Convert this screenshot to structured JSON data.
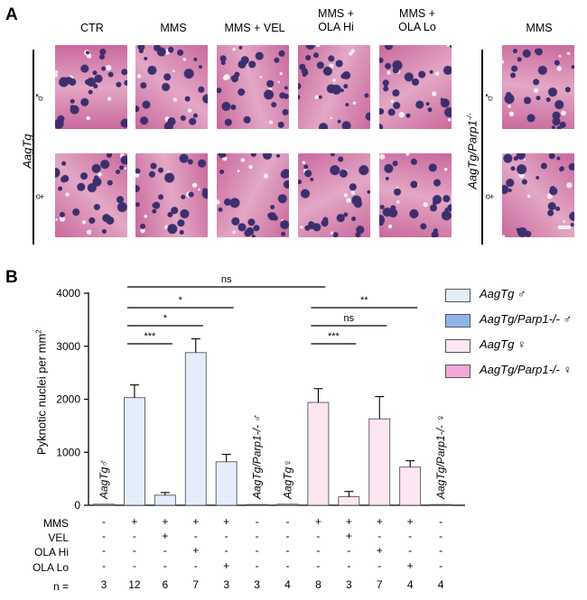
{
  "panel_a": {
    "letter": "A",
    "columns": [
      "CTR",
      "MMS",
      "MMS + VEL",
      "MMS +\nOLA Hi",
      "MMS +\nOLA Lo"
    ],
    "right_column": "MMS",
    "left_group_label": "AagTg",
    "right_group_label": "AagTg/Parp1",
    "right_group_sup": "-/-",
    "male": "♂",
    "female": "♀",
    "tile_colors": {
      "base": "#c9699c",
      "light": "#e3a7c6",
      "dark": "#3d2e6e"
    }
  },
  "panel_b": {
    "letter": "B",
    "ylabel": "Pyknotic nuclei per mm",
    "ylabel_sup": "2",
    "legend": [
      {
        "label": "AagTg ♂",
        "color": "#e4eefb"
      },
      {
        "label": "AagTg/Parp1-/- ♂",
        "color": "#8fb4ea"
      },
      {
        "label": "AagTg ♀",
        "color": "#fbe6f2"
      },
      {
        "label": "AagTg/Parp1-/- ♀",
        "color": "#f3a8d6"
      }
    ],
    "row_labels": [
      "MMS",
      "VEL",
      "OLA Hi",
      "OLA Lo",
      "n ="
    ],
    "table": [
      [
        "-",
        "+",
        "+",
        "+",
        "+",
        "-",
        "-",
        "+",
        "+",
        "+",
        "+",
        "-"
      ],
      [
        "-",
        "-",
        "+",
        "-",
        "-",
        "-",
        "-",
        "-",
        "+",
        "-",
        "-",
        "-"
      ],
      [
        "-",
        "-",
        "-",
        "+",
        "-",
        "-",
        "-",
        "-",
        "-",
        "+",
        "-",
        "-"
      ],
      [
        "-",
        "-",
        "-",
        "-",
        "+",
        "-",
        "-",
        "-",
        "-",
        "-",
        "+",
        "-"
      ],
      [
        "3",
        "12",
        "6",
        "7",
        "3",
        "3",
        "4",
        "8",
        "3",
        "7",
        "4",
        "4"
      ]
    ],
    "in_bar_labels": [
      "AagTg♂",
      "AagTg/Parp1-/- ♂",
      "AagTg♀",
      "AagTg/Parp1-/- ♀"
    ],
    "significance": [
      {
        "label": "ns"
      },
      {
        "label": "*"
      },
      {
        "label": "*"
      },
      {
        "label": "***"
      },
      {
        "label": "**"
      },
      {
        "label": "ns"
      },
      {
        "label": "***"
      }
    ]
  },
  "chart_data": {
    "type": "bar",
    "title": "",
    "xlabel": "",
    "ylabel": "Pyknotic nuclei per mm2",
    "ylim": [
      0,
      4000
    ],
    "yticks": [
      0,
      1000,
      2000,
      3000,
      4000
    ],
    "grid": false,
    "categories": [
      "1",
      "2",
      "3",
      "4",
      "5",
      "6",
      "7",
      "8",
      "9",
      "10",
      "11",
      "12"
    ],
    "values": [
      20,
      2030,
      190,
      2880,
      820,
      15,
      20,
      1940,
      160,
      1630,
      720,
      15
    ],
    "errors": [
      0,
      240,
      50,
      260,
      140,
      0,
      0,
      260,
      100,
      420,
      120,
      0
    ],
    "bar_colors": [
      "#8fb4ea",
      "#e4eefb",
      "#e4eefb",
      "#e4eefb",
      "#e4eefb",
      "#8fb4ea",
      "#f3a8d6",
      "#fbe6f2",
      "#fbe6f2",
      "#fbe6f2",
      "#fbe6f2",
      "#f3a8d6"
    ],
    "comparisons": [
      {
        "from": 2,
        "to": 8,
        "label": "ns"
      },
      {
        "from": 2,
        "to": 5,
        "label": "*"
      },
      {
        "from": 2,
        "to": 4,
        "label": "*"
      },
      {
        "from": 2,
        "to": 3,
        "label": "***"
      },
      {
        "from": 8,
        "to": 11,
        "label": "**"
      },
      {
        "from": 8,
        "to": 10,
        "label": "ns"
      },
      {
        "from": 8,
        "to": 9,
        "label": "***"
      }
    ]
  }
}
